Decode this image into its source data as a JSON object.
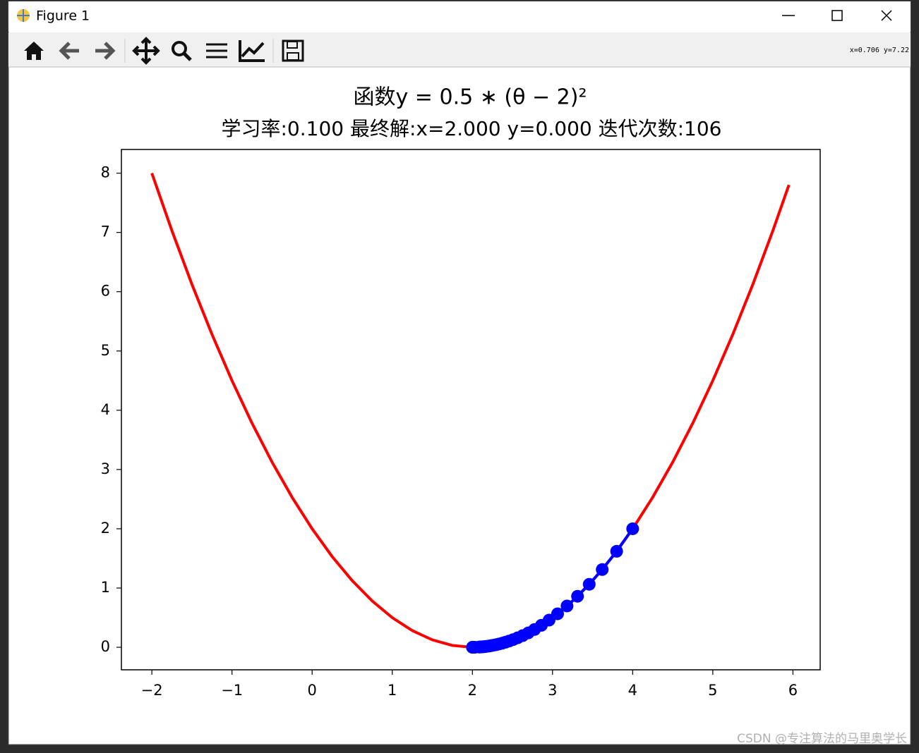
{
  "window": {
    "title": "Figure 1",
    "coords": "x=0.706  y=7.22"
  },
  "watermark": "CSDN @专注算法的马里奥学长",
  "chart_data": {
    "type": "line",
    "title": "函数y = 0.5 ∗ (θ − 2)²",
    "subtitle": "学习率:0.100   最终解:x=2.000 y=0.000   迭代次数:106",
    "xlim": [
      -2.38,
      6.34
    ],
    "ylim": [
      -0.38,
      8.4
    ],
    "xticks": [
      {
        "value": -2,
        "label": "−2"
      },
      {
        "value": -1,
        "label": "−1"
      },
      0,
      1,
      2,
      3,
      4,
      5,
      6
    ],
    "yticks": [
      0,
      1,
      2,
      3,
      4,
      5,
      6,
      7,
      8
    ],
    "grid": false,
    "series": [
      {
        "color": "#ff0000",
        "marker": false,
        "x": [
          -2,
          -1.75,
          -1.5,
          -1.25,
          -1,
          -0.75,
          -0.5,
          -0.25,
          0,
          0.25,
          0.5,
          0.75,
          1,
          1.25,
          1.5,
          1.75,
          2,
          2.25,
          2.5,
          2.75,
          3,
          3.25,
          3.5,
          3.75,
          4,
          4.25,
          4.5,
          4.75,
          5,
          5.25,
          5.5,
          5.75,
          5.95
        ],
        "values": [
          8,
          7.03125,
          6.125,
          5.28125,
          4.5,
          3.78125,
          3.125,
          2.53125,
          2,
          1.53125,
          1.125,
          0.78125,
          0.5,
          0.28125,
          0.125,
          0.03125,
          0,
          0.03125,
          0.125,
          0.28125,
          0.5,
          0.78125,
          1.125,
          1.53125,
          2,
          2.53125,
          3.125,
          3.78125,
          4.5,
          5.28125,
          6.125,
          7.03125,
          7.80125
        ]
      },
      {
        "color": "#0000ff",
        "marker": true,
        "x": [
          4,
          3.8,
          3.62,
          3.458,
          3.312,
          3.181,
          3.063,
          2.957,
          2.861,
          2.775,
          2.697,
          2.628,
          2.565,
          2.508,
          2.458,
          2.412,
          2.371,
          2.334,
          2.3,
          2.27,
          2.243,
          2.219,
          2.197,
          2.177,
          2.16,
          2.144,
          2.129,
          2.116,
          2.105,
          2.094,
          2.085,
          2.03,
          2.01,
          2
        ],
        "values": [
          2,
          1.62,
          1.312,
          1.063,
          0.861,
          0.697,
          0.565,
          0.458,
          0.371,
          0.3,
          0.243,
          0.197,
          0.16,
          0.129,
          0.105,
          0.085,
          0.069,
          0.056,
          0.045,
          0.037,
          0.03,
          0.024,
          0.019,
          0.016,
          0.013,
          0.01,
          0.008,
          0.007,
          0.006,
          0.004,
          0.004,
          0.0004,
          0.0001,
          0
        ]
      }
    ]
  }
}
